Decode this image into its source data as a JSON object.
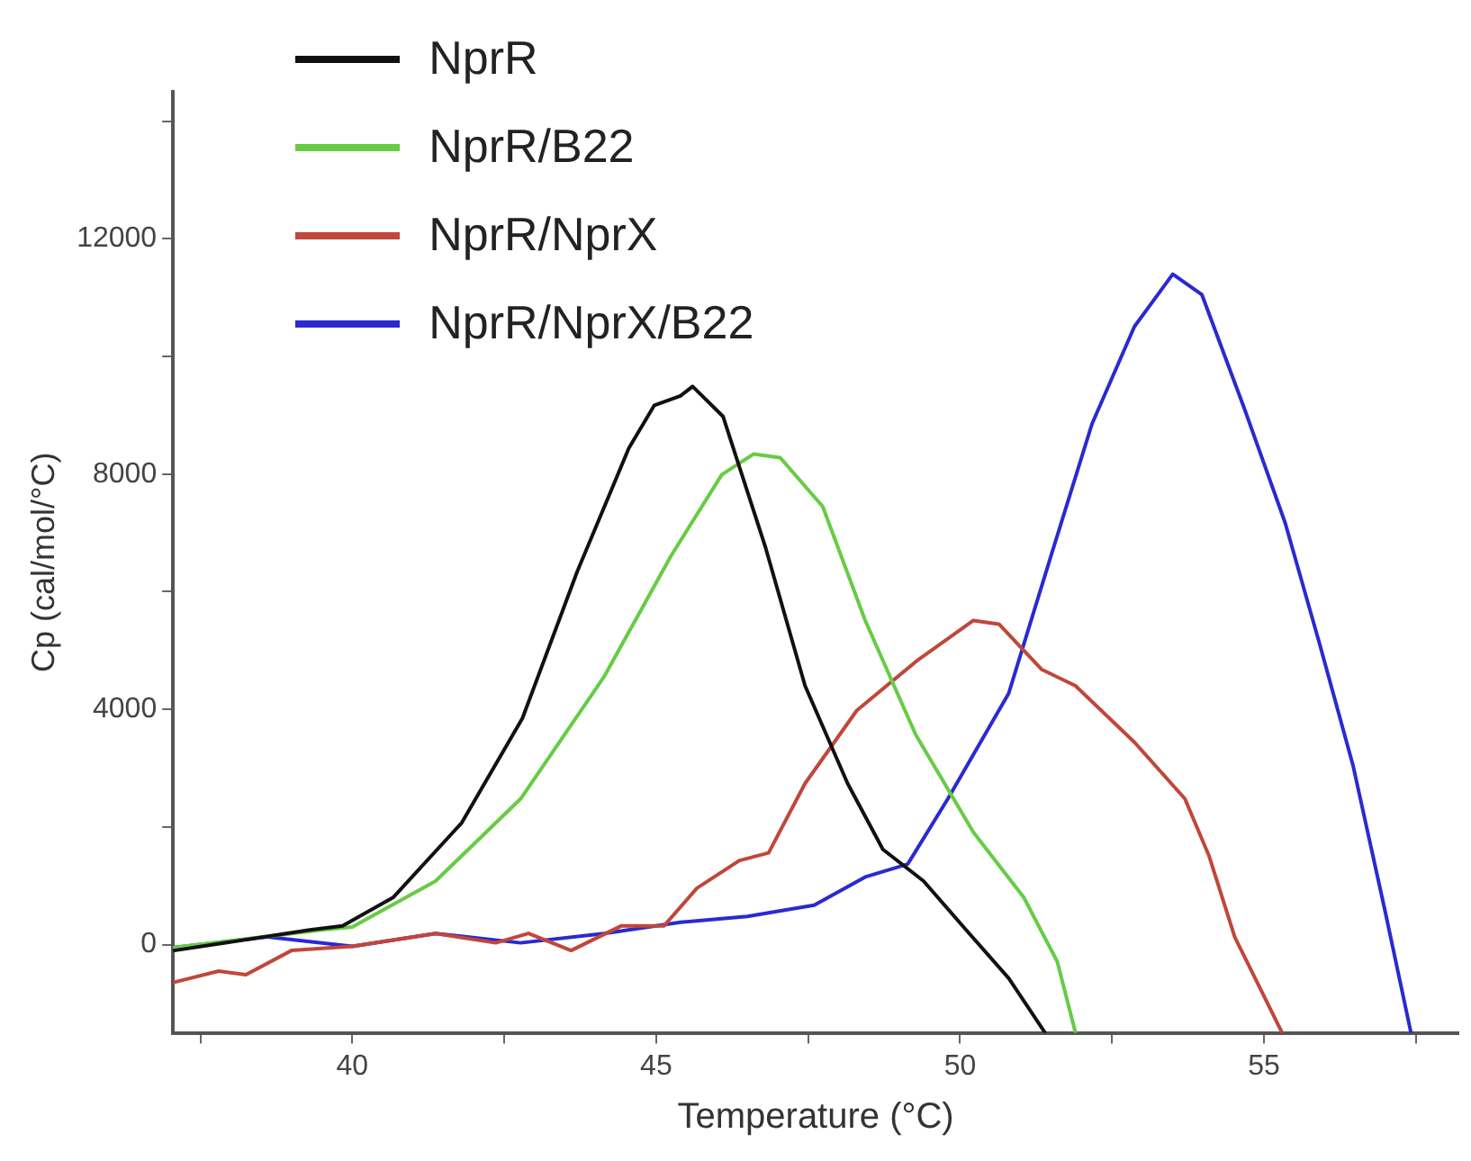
{
  "chart_data": {
    "type": "line",
    "xlabel": "Temperature (°C)",
    "ylabel": "Cp (cal/mol/°C)",
    "xlim": [
      37.05,
      58.2
    ],
    "ylim": [
      -1500,
      14500
    ],
    "xticks": [
      {
        "value": 37.5,
        "label": null
      },
      40,
      {
        "value": 42.5,
        "label": null
      },
      45,
      {
        "value": 47.5,
        "label": null
      },
      50,
      {
        "value": 52.5,
        "label": null
      },
      55,
      {
        "value": 57.5,
        "label": null
      }
    ],
    "yticks": [
      0,
      {
        "value": 2000,
        "label": null
      },
      4000,
      {
        "value": 6000,
        "label": null
      },
      8000,
      {
        "value": 10000,
        "label": null
      },
      12000,
      {
        "value": 14000,
        "label": null
      }
    ],
    "grid": false,
    "legend": "top left",
    "marker": "none",
    "line_style": "solid",
    "series": [
      {
        "name": "NprR",
        "color": "#111111",
        "x": [
          37.07,
          39.3,
          39.84,
          40.67,
          41.8,
          42.8,
          43.7,
          44.55,
          44.97,
          45.4,
          45.6,
          46.1,
          46.8,
          47.45,
          48.15,
          48.73,
          49.4,
          50.1,
          50.8,
          51.4
        ],
        "values": [
          -100,
          250,
          320,
          800,
          2070,
          3850,
          6340,
          8440,
          9170,
          9330,
          9490,
          8980,
          6750,
          4400,
          2740,
          1620,
          1080,
          250,
          -570,
          -1500
        ]
      },
      {
        "name": "NprR/B22",
        "color": "#66cc44",
        "x": [
          37.07,
          39.5,
          40.0,
          41.37,
          42.77,
          44.14,
          45.25,
          46.08,
          46.6,
          47.04,
          47.74,
          48.44,
          49.27,
          50.22,
          51.05,
          51.6,
          51.9
        ],
        "values": [
          -50,
          250,
          300,
          1080,
          2480,
          4550,
          6620,
          7990,
          8340,
          8280,
          7450,
          5510,
          3570,
          1910,
          800,
          -290,
          -1500
        ]
      },
      {
        "name": "NprR/NprX",
        "color": "#c0473a",
        "x": [
          37.07,
          37.8,
          38.25,
          39.0,
          40.0,
          41.37,
          42.36,
          42.9,
          43.6,
          44.43,
          45.13,
          45.67,
          46.37,
          46.85,
          47.45,
          48.3,
          49.27,
          50.22,
          50.64,
          51.34,
          51.9,
          52.87,
          53.7,
          54.1,
          54.52,
          55.3
        ],
        "values": [
          -640,
          -450,
          -510,
          -100,
          -30,
          190,
          30,
          190,
          -100,
          320,
          320,
          960,
          1430,
          1560,
          2740,
          3980,
          4810,
          5510,
          5450,
          4680,
          4400,
          3440,
          2480,
          1500,
          130,
          -1500
        ]
      },
      {
        "name": "NprR/NprX/B22",
        "color": "#2a2ad0",
        "x": [
          37.07,
          38.6,
          40.0,
          41.37,
          42.77,
          44.14,
          45.4,
          46.5,
          47.6,
          48.44,
          49.14,
          49.8,
          50.8,
          51.5,
          52.17,
          52.87,
          53.5,
          53.98,
          54.68,
          55.35,
          55.92,
          56.47,
          57.0,
          57.42
        ],
        "values": [
          -50,
          130,
          -30,
          190,
          30,
          190,
          380,
          480,
          670,
          1150,
          1370,
          2480,
          4270,
          6620,
          8850,
          10510,
          11400,
          11050,
          9110,
          7170,
          5100,
          3030,
          540,
          -1500
        ]
      }
    ]
  }
}
